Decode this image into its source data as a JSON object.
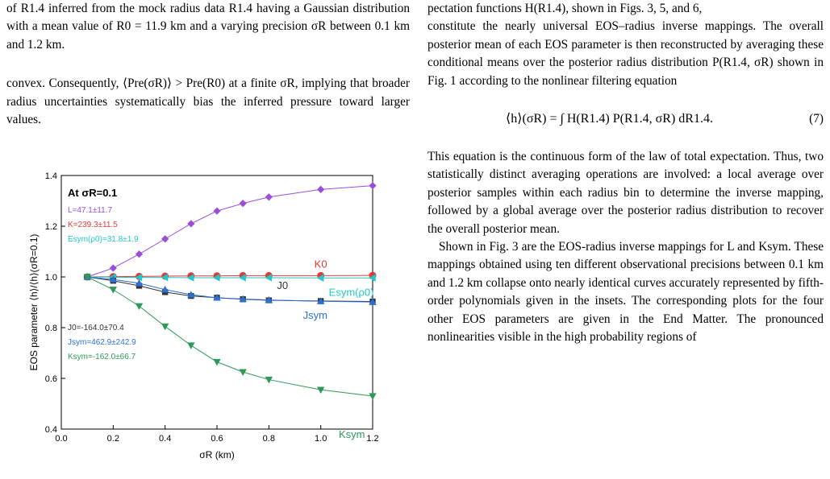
{
  "left_column": {
    "caption_tail": "of R1.4 inferred from the mock radius data R1.4 having a Gaussian distribution with a mean value of R0 = 11.9 km and a varying precision σR between 0.1 km and 1.2 km.",
    "paragraph": "convex. Consequently, ⟨Pre(σR)⟩ > Pre(R0) at a finite σR, implying that broader radius uncertainties systematically bias the inferred pressure toward larger values."
  },
  "right_column": {
    "p1_line1": "pectation functions H(R1.4), shown in Figs. 3, 5, and 6,",
    "p1_rest": "constitute the nearly universal EOS–radius inverse mappings. The overall posterior mean of each EOS parameter is then reconstructed by averaging these conditional means over the posterior radius distribution P(R1.4, σR) shown in Fig. 1 according to the nonlinear filtering equation",
    "equation": "⟨h⟩(σR) = ∫ H(R1.4) P(R1.4, σR) dR1.4.",
    "equation_number": "(7)",
    "p2": "This equation is the continuous form of the law of total expectation. Thus, two statistically distinct averaging operations are involved: a local average over posterior samples within each radius bin to determine the inverse mapping, followed by a global average over the posterior radius distribution to recover the overall posterior mean.",
    "p3": "Shown in Fig. 3 are the EOS-radius inverse mappings for L and Ksym. These mappings obtained using ten different observational precisions between 0.1 km and 1.2 km collapse onto nearly identical curves accurately represented by fifth-order polynomials given in the insets. The corresponding plots for the four other EOS parameters are given in the End Matter. The pronounced nonlinearities visible in the high probability regions of"
  },
  "chart_data": {
    "type": "line",
    "xlabel": "σR (km)",
    "ylabel": "EOS parameter ⟨h⟩/⟨h⟩(σR=0.1)",
    "xlim": [
      0.0,
      1.2
    ],
    "ylim": [
      0.4,
      1.4
    ],
    "xticks": [
      0.0,
      0.2,
      0.4,
      0.6,
      0.8,
      1.0,
      1.2
    ],
    "xtick_labels": [
      "0.0",
      "0.2",
      "0.4",
      "0.6",
      "0.8",
      "1.0",
      "1.2"
    ],
    "yticks": [
      0.4,
      0.6,
      0.8,
      1.0,
      1.2,
      1.4
    ],
    "ytick_labels": [
      "0.4",
      "0.6",
      "0.8",
      "1.0",
      "1.2",
      "1.4"
    ],
    "x": [
      0.1,
      0.2,
      0.3,
      0.4,
      0.5,
      0.6,
      0.7,
      0.8,
      1.0,
      1.2
    ],
    "series": [
      {
        "name": "L",
        "color": "#9b4fd6",
        "marker": "diamond",
        "values": [
          1.0,
          1.035,
          1.09,
          1.15,
          1.21,
          1.26,
          1.29,
          1.315,
          1.345,
          1.36
        ]
      },
      {
        "name": "K0",
        "color": "#e03a3a",
        "marker": "circle",
        "values": [
          1.0,
          1.001,
          1.002,
          1.003,
          1.004,
          1.004,
          1.005,
          1.005,
          1.005,
          1.006
        ]
      },
      {
        "name": "Esym(ρ0)",
        "color": "#22c7c7",
        "marker": "triangle-left",
        "values": [
          1.0,
          0.999,
          0.998,
          0.998,
          0.997,
          0.997,
          0.997,
          0.997,
          0.996,
          0.996
        ]
      },
      {
        "name": "J0",
        "color": "#333333",
        "marker": "square",
        "values": [
          1.0,
          0.985,
          0.965,
          0.94,
          0.925,
          0.918,
          0.912,
          0.908,
          0.905,
          0.903
        ]
      },
      {
        "name": "Jsym",
        "color": "#2f6fd0",
        "marker": "triangle-up",
        "values": [
          1.0,
          0.99,
          0.975,
          0.95,
          0.93,
          0.918,
          0.913,
          0.909,
          0.904,
          0.901
        ]
      },
      {
        "name": "Ksym",
        "color": "#2e9a57",
        "marker": "triangle-down",
        "values": [
          1.0,
          0.95,
          0.885,
          0.805,
          0.73,
          0.665,
          0.625,
          0.595,
          0.555,
          0.53
        ]
      }
    ],
    "annotations": {
      "header": "At σR=0.1",
      "top_left": [
        {
          "text": "L=47.1±11.7",
          "color": "#9b4fd6"
        },
        {
          "text": "K=239.3±11.5",
          "color": "#e03a3a"
        },
        {
          "text": "Esym(ρ0)=31.8±1.9",
          "color": "#22c7c7"
        }
      ],
      "bottom_left": [
        {
          "text": "J0=-164.0±70.4",
          "color": "#333333"
        },
        {
          "text": "Jsym=462.9±242.9",
          "color": "#2f6fd0"
        },
        {
          "text": "Ksym=-162.0±66.7",
          "color": "#2e9a57"
        }
      ]
    }
  }
}
